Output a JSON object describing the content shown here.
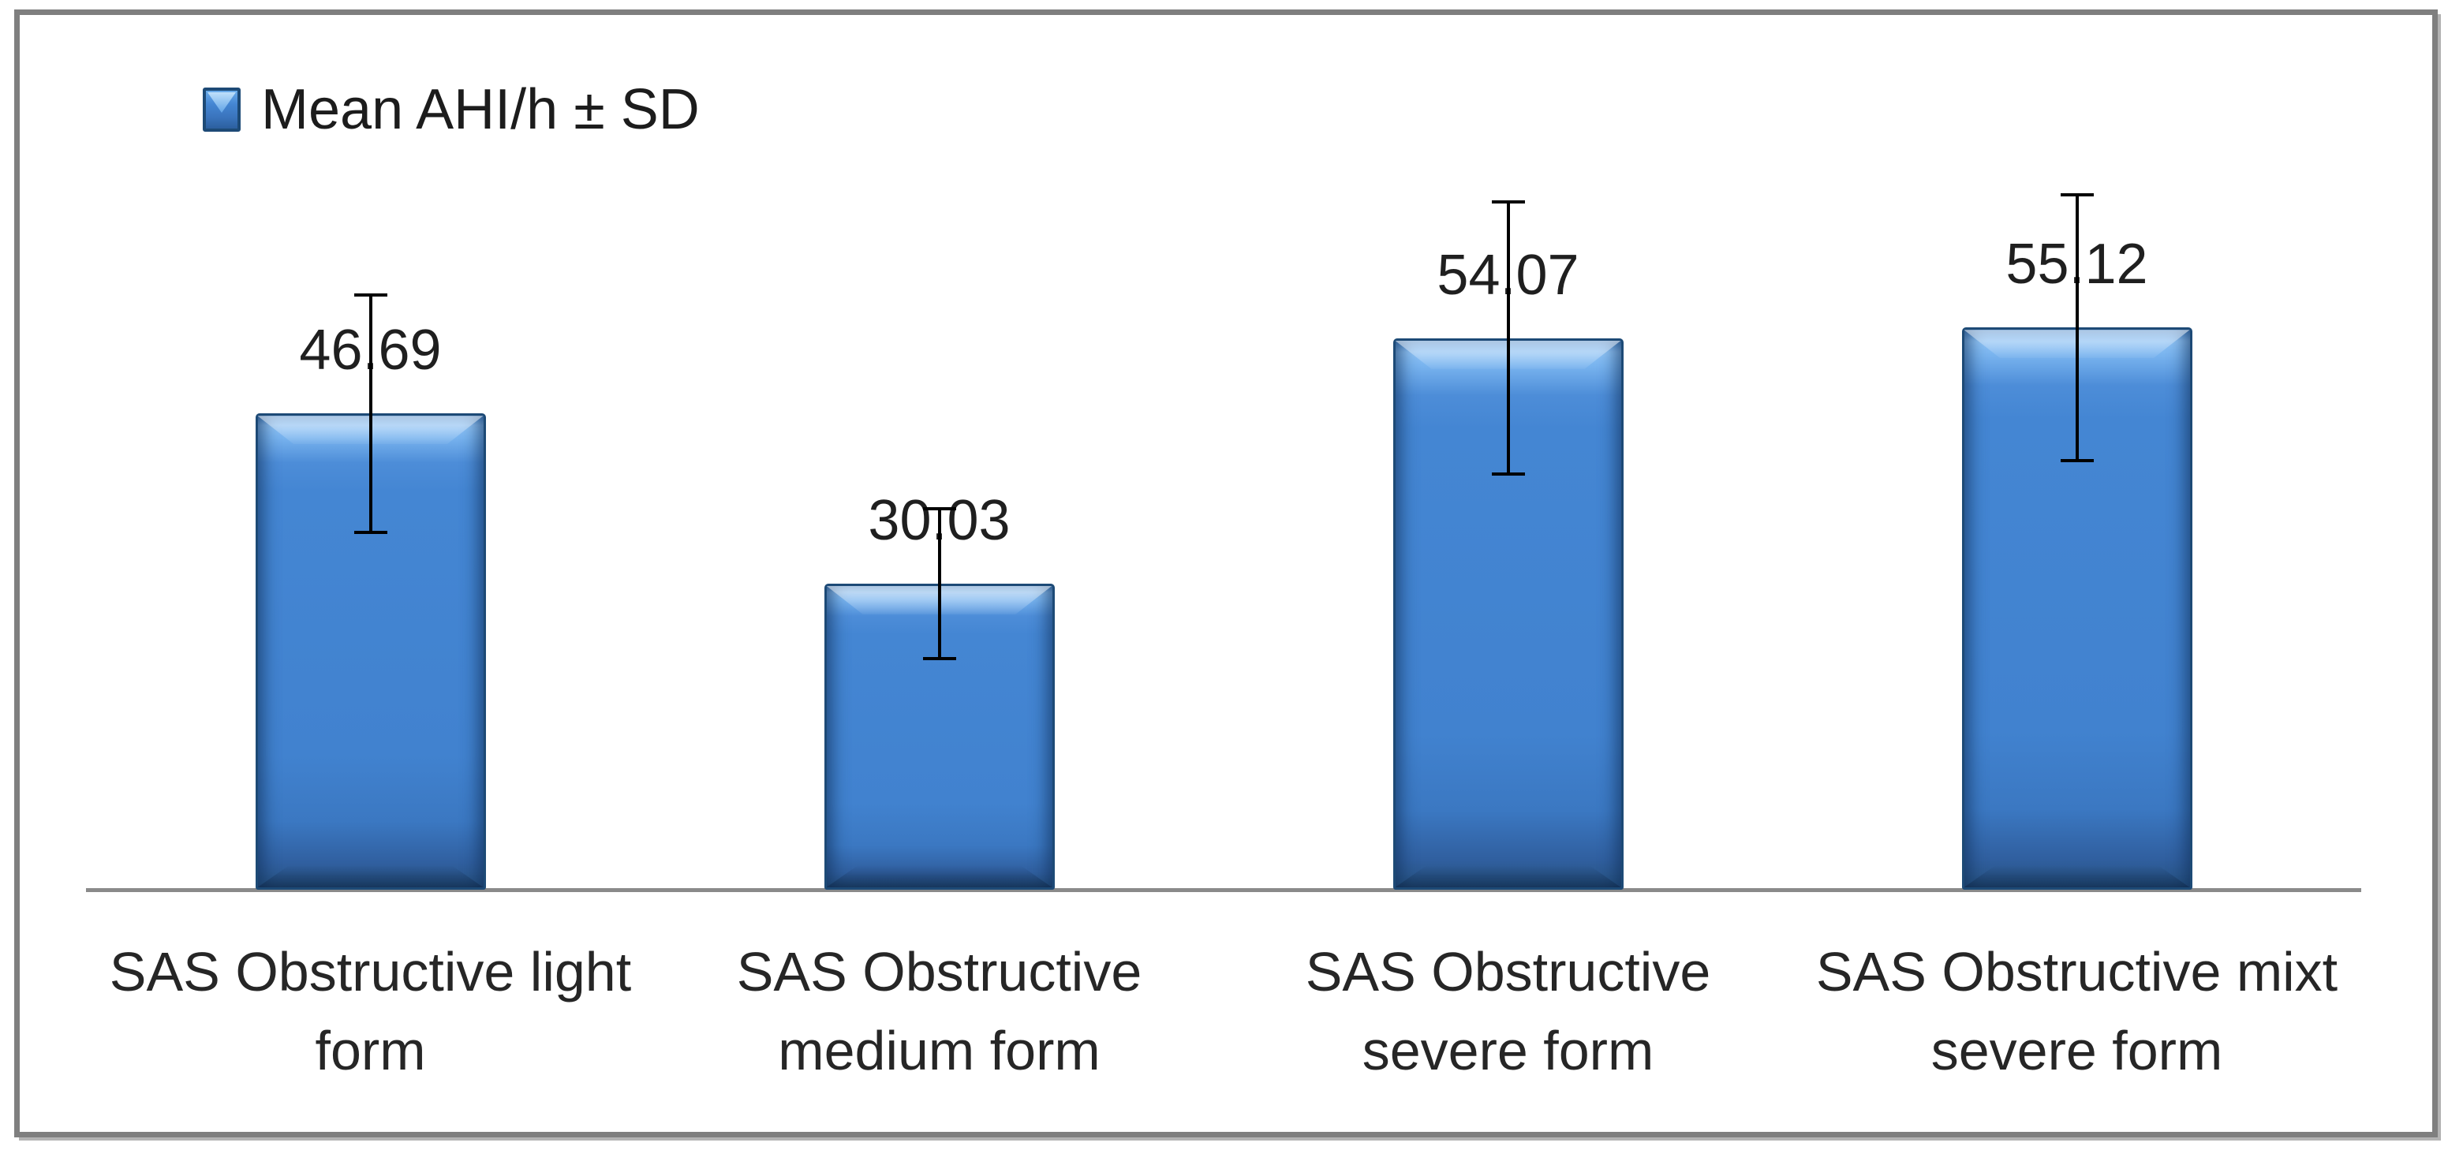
{
  "figure": {
    "background_color": "#ffffff",
    "frame_border_color": "#7f7f7f"
  },
  "legend": {
    "label": "Mean AHI/h ± SD",
    "position": "top-left",
    "marker_color": "#4182cf",
    "marker_border_color": "#1d4a76"
  },
  "chart_data": {
    "type": "bar",
    "title": "",
    "xlabel": "",
    "ylabel": "",
    "categories": [
      "SAS Obstructive light form",
      "SAS Obstructive medium form",
      "SAS Obstructive severe form",
      "SAS Obstructive mixt severe form"
    ],
    "category_label_lines": [
      [
        "SAS Obstructive light",
        "form"
      ],
      [
        "SAS Obstructive",
        "medium form"
      ],
      [
        "SAS Obstructive",
        "severe form"
      ],
      [
        "SAS Obstructive mixt",
        "severe form"
      ]
    ],
    "series": [
      {
        "name": "Mean AHI/h ± SD",
        "values": [
          46.69,
          30.03,
          54.07,
          55.12
        ],
        "data_labels": [
          "46.69",
          "30.03",
          "54.07",
          "55.12"
        ],
        "error_bars_sd_estimated": [
          11.8,
          7.5,
          13.5,
          13.2
        ]
      }
    ],
    "ylim": [
      0,
      85
    ],
    "grid": false,
    "legend_position": "top-left",
    "bar_color": "#4182cf",
    "bar_outline_color": "#1d4a76",
    "error_bar_color": "#000000",
    "axis_line_color": "#8a8a8a",
    "label_text_color": "#1f1f1f"
  }
}
